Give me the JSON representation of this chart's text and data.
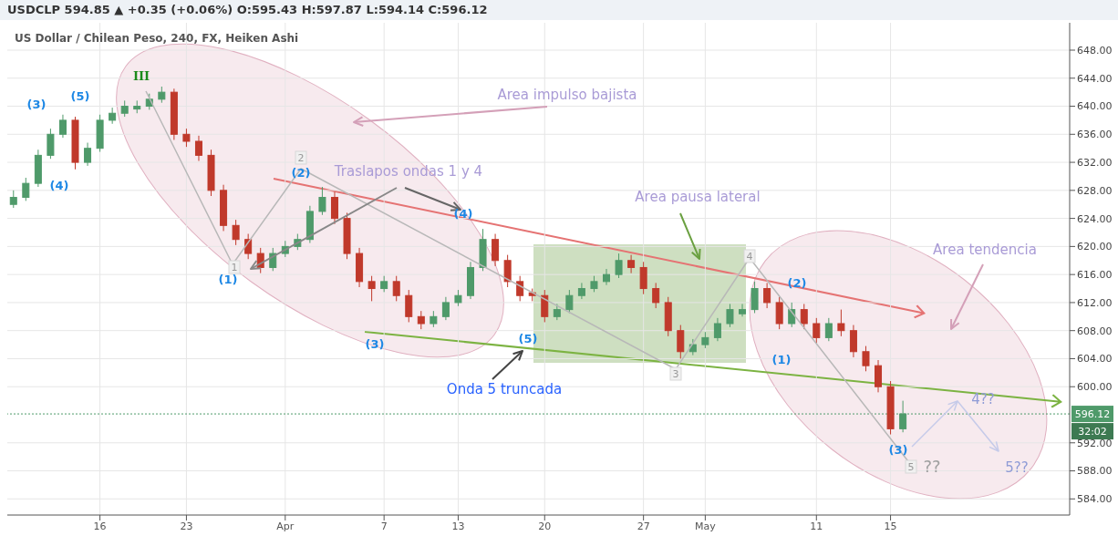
{
  "chart_data": {
    "type": "candlestick",
    "title": "US Dollar / Chilean Peso, 240, FX, Heiken Ashi",
    "subtitle": "USDCLP 594.85 ▲ +0.35 (+0.06%) O:595.43 H:597.87 L:594.14 C:596.12",
    "categories": [
      null,
      null,
      null,
      null,
      null,
      null,
      null,
      "16",
      null,
      null,
      null,
      null,
      null,
      null,
      "23",
      null,
      null,
      null,
      null,
      null,
      null,
      null,
      "Apr",
      null,
      null,
      null,
      null,
      null,
      null,
      null,
      "7",
      null,
      null,
      null,
      null,
      null,
      "13",
      null,
      null,
      null,
      null,
      null,
      null,
      "20",
      null,
      null,
      null,
      null,
      null,
      null,
      null,
      "27",
      null,
      null,
      null,
      null,
      "May",
      null,
      null,
      null,
      null,
      null,
      null,
      null,
      null,
      "11",
      null,
      null,
      null,
      null,
      null,
      "15",
      null,
      null,
      null,
      null,
      null,
      null,
      null,
      null,
      null,
      null,
      null,
      null,
      null,
      null
    ],
    "ohlc": [
      [
        626,
        628,
        625.5,
        627
      ],
      [
        627,
        629.8,
        626.5,
        629
      ],
      [
        629,
        633.8,
        628.5,
        633
      ],
      [
        633,
        636.8,
        632.5,
        636
      ],
      [
        636,
        638.8,
        635.5,
        638
      ],
      [
        638,
        638.5,
        631,
        632
      ],
      [
        632,
        634.8,
        631.5,
        634
      ],
      [
        634,
        638.8,
        633.5,
        638
      ],
      [
        638,
        639.8,
        637.5,
        639
      ],
      [
        639,
        640.8,
        638.5,
        640
      ],
      [
        639.6,
        640.8,
        639,
        640
      ],
      [
        640,
        641.8,
        639.5,
        641
      ],
      [
        641,
        642.8,
        640.5,
        642
      ],
      [
        642,
        642.5,
        635.2,
        636
      ],
      [
        636,
        636.8,
        634.2,
        635
      ],
      [
        635,
        635.8,
        632.2,
        633
      ],
      [
        633,
        633.8,
        627.2,
        628
      ],
      [
        628,
        628.8,
        622.2,
        623
      ],
      [
        623,
        623.8,
        620.2,
        621
      ],
      [
        621,
        621.8,
        618.2,
        619
      ],
      [
        619,
        619.8,
        616.2,
        617
      ],
      [
        617,
        619.8,
        616.5,
        619
      ],
      [
        619,
        620.8,
        618.5,
        620
      ],
      [
        620,
        621.8,
        619.5,
        621
      ],
      [
        621,
        625.8,
        620.5,
        625
      ],
      [
        625,
        628.5,
        624.5,
        627
      ],
      [
        627,
        627.8,
        623.2,
        624
      ],
      [
        624,
        624.8,
        618.2,
        619
      ],
      [
        619,
        619.8,
        614.2,
        615
      ],
      [
        615,
        615.8,
        612.2,
        614
      ],
      [
        614,
        615.8,
        613.5,
        615
      ],
      [
        615,
        615.8,
        612.2,
        613
      ],
      [
        613,
        613.8,
        609.2,
        610
      ],
      [
        610,
        610.8,
        608.2,
        609
      ],
      [
        609,
        610.8,
        608.5,
        610
      ],
      [
        610,
        612.8,
        609.5,
        612
      ],
      [
        612,
        613.8,
        611.5,
        613
      ],
      [
        613,
        617.8,
        612.5,
        617
      ],
      [
        617,
        622.5,
        616.5,
        621
      ],
      [
        621,
        621.8,
        617.2,
        618
      ],
      [
        618,
        618.8,
        614.2,
        615
      ],
      [
        615,
        615.8,
        612.2,
        613
      ],
      [
        613.4,
        614,
        612.2,
        613
      ],
      [
        613,
        613.8,
        609.2,
        610
      ],
      [
        610,
        611.8,
        609.5,
        611
      ],
      [
        611,
        613.8,
        610.5,
        613
      ],
      [
        613,
        614.8,
        612.5,
        614
      ],
      [
        614,
        615.8,
        613.5,
        615
      ],
      [
        615,
        616.8,
        614.5,
        616
      ],
      [
        616,
        619,
        615.5,
        618
      ],
      [
        618,
        618.8,
        616.2,
        617
      ],
      [
        617,
        617.8,
        613.2,
        614
      ],
      [
        614,
        614.8,
        611.2,
        612
      ],
      [
        612,
        612.8,
        607.2,
        608
      ],
      [
        608,
        608.8,
        604,
        605
      ],
      [
        605,
        606.8,
        604.5,
        606
      ],
      [
        606,
        607.8,
        605.5,
        607
      ],
      [
        607,
        609.8,
        606.5,
        609
      ],
      [
        609,
        611.8,
        608.5,
        611
      ],
      [
        610.4,
        611.8,
        610,
        611
      ],
      [
        611,
        615,
        610.5,
        614
      ],
      [
        614,
        614.8,
        611.2,
        612
      ],
      [
        612,
        612.8,
        608.2,
        609
      ],
      [
        609,
        612,
        608.5,
        611
      ],
      [
        611,
        611.8,
        608.2,
        609
      ],
      [
        609,
        609.8,
        606.2,
        607
      ],
      [
        607,
        609.8,
        606.5,
        609
      ],
      [
        609,
        611,
        607.2,
        608
      ],
      [
        608,
        608.8,
        604.2,
        605
      ],
      [
        605,
        605.8,
        602.2,
        603
      ],
      [
        603,
        603.8,
        599.2,
        600
      ],
      [
        600,
        600.8,
        593.2,
        594
      ],
      [
        594,
        598,
        593.5,
        596.12
      ],
      null,
      null,
      null,
      null,
      null,
      null,
      null,
      null,
      null,
      null,
      null,
      null,
      null
    ],
    "colors": [
      "#4f9a6a",
      "#4f9a6a",
      "#4f9a6a",
      "#4f9a6a",
      "#4f9a6a",
      "#c0392b",
      "#4f9a6a",
      "#4f9a6a",
      "#4f9a6a",
      "#4f9a6a",
      "#4f9a6a",
      "#4f9a6a",
      "#4f9a6a",
      "#c0392b",
      "#c0392b",
      "#c0392b",
      "#c0392b",
      "#c0392b",
      "#c0392b",
      "#c0392b",
      "#c0392b",
      "#4f9a6a",
      "#4f9a6a",
      "#4f9a6a",
      "#4f9a6a",
      "#4f9a6a",
      "#c0392b",
      "#c0392b",
      "#c0392b",
      "#c0392b",
      "#4f9a6a",
      "#c0392b",
      "#c0392b",
      "#c0392b",
      "#4f9a6a",
      "#4f9a6a",
      "#4f9a6a",
      "#4f9a6a",
      "#4f9a6a",
      "#c0392b",
      "#c0392b",
      "#c0392b",
      "#c0392b",
      "#c0392b",
      "#4f9a6a",
      "#4f9a6a",
      "#4f9a6a",
      "#4f9a6a",
      "#4f9a6a",
      "#4f9a6a",
      "#c0392b",
      "#c0392b",
      "#c0392b",
      "#c0392b",
      "#c0392b",
      "#4f9a6a",
      "#4f9a6a",
      "#4f9a6a",
      "#4f9a6a",
      "#4f9a6a",
      "#4f9a6a",
      "#c0392b",
      "#c0392b",
      "#4f9a6a",
      "#c0392b",
      "#c0392b",
      "#4f9a6a",
      "#c0392b",
      "#c0392b",
      "#c0392b",
      "#c0392b",
      "#c0392b",
      "#4f9a6a",
      null,
      null,
      null,
      null,
      null,
      null,
      null,
      null,
      null,
      null,
      null,
      null,
      null
    ],
    "ylim": [
      581.7,
      651.9
    ],
    "yticks": [
      {
        "value": 584,
        "label": "584.00"
      },
      {
        "value": 588,
        "label": "588.00"
      },
      {
        "value": 592,
        "label": "592.00"
      },
      {
        "value": 600,
        "label": "600.00"
      },
      {
        "value": 604,
        "label": "604.00"
      },
      {
        "value": 608,
        "label": "608.00"
      },
      {
        "value": 612,
        "label": "612.00"
      },
      {
        "value": 616,
        "label": "616.00"
      },
      {
        "value": 620,
        "label": "620.00"
      },
      {
        "value": 624,
        "label": "624.00"
      },
      {
        "value": 628,
        "label": "628.00"
      },
      {
        "value": 632,
        "label": "632.00"
      },
      {
        "value": 636,
        "label": "636.00"
      },
      {
        "value": 640,
        "label": "640.00"
      },
      {
        "value": 644,
        "label": "644.00"
      },
      {
        "value": 648,
        "label": "648.00"
      }
    ],
    "grid": true,
    "ref_lines": [
      {
        "axis": "y",
        "value": 596.12,
        "label": "596.12",
        "color": "#4f9a6a",
        "line_style": "dotted"
      }
    ],
    "annotations": [
      "(3)",
      "(5)",
      "(4)",
      "III",
      "(2)",
      "(1)",
      "(3)",
      "(4)",
      "(5)",
      "(2)",
      "(1)",
      "(3)",
      "2",
      "1",
      "3",
      "4",
      "5",
      "??",
      "4??",
      "5??",
      "Area impulso bajista",
      "Traslapos ondas 1 y 4",
      "Area pausa lateral",
      "Area tendencia",
      "Onda 5 truncada",
      "32:02"
    ]
  }
}
